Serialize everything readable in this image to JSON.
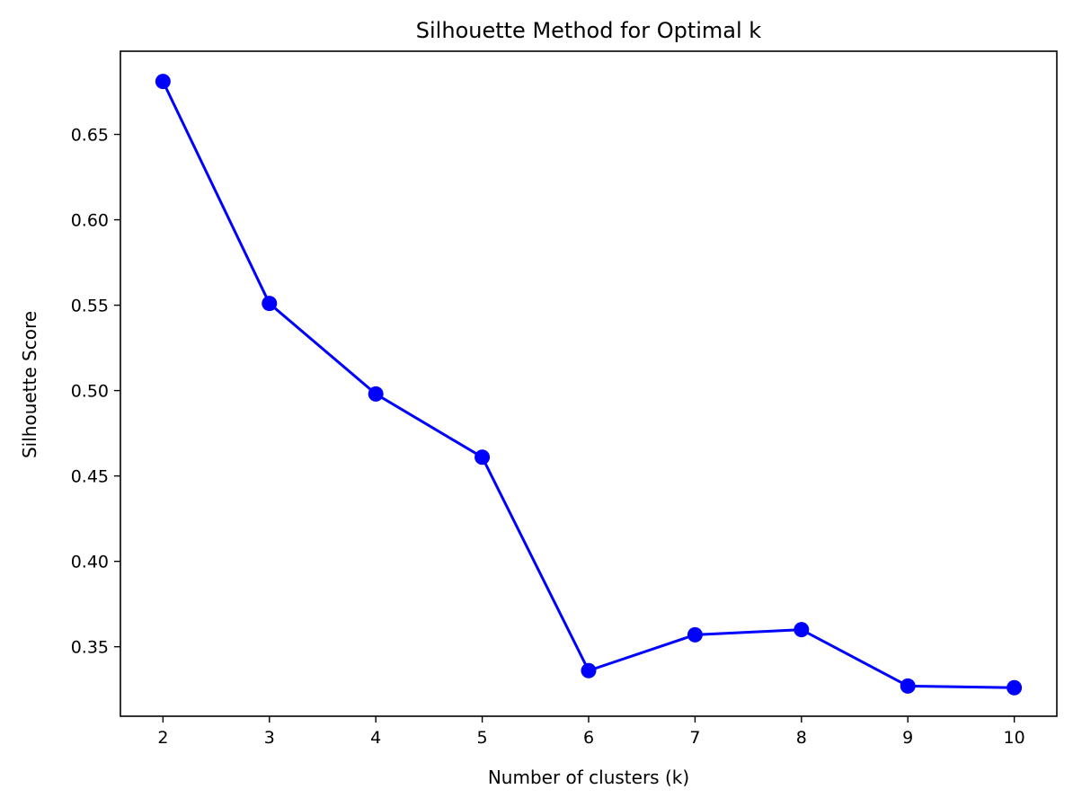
{
  "chart_data": {
    "type": "line",
    "title": "Silhouette Method for Optimal k",
    "xlabel": "Number of clusters (k)",
    "ylabel": "Silhouette Score",
    "x": [
      2,
      3,
      4,
      5,
      6,
      7,
      8,
      9,
      10
    ],
    "series": [
      {
        "values": [
          0.681,
          0.551,
          0.498,
          0.461,
          0.336,
          0.357,
          0.36,
          0.327,
          0.326
        ],
        "color": "#0000ff",
        "marker": "circle"
      }
    ],
    "xticks": [
      2,
      3,
      4,
      5,
      6,
      7,
      8,
      9,
      10
    ],
    "yticks": [
      0.35,
      0.4,
      0.45,
      0.5,
      0.55,
      0.6,
      0.65
    ],
    "ytick_labels": [
      "0.35",
      "0.40",
      "0.45",
      "0.50",
      "0.55",
      "0.60",
      "0.65"
    ],
    "xlim": [
      1.6,
      10.4
    ],
    "ylim": [
      0.3093,
      0.6987
    ],
    "grid": false,
    "legend": "none"
  }
}
